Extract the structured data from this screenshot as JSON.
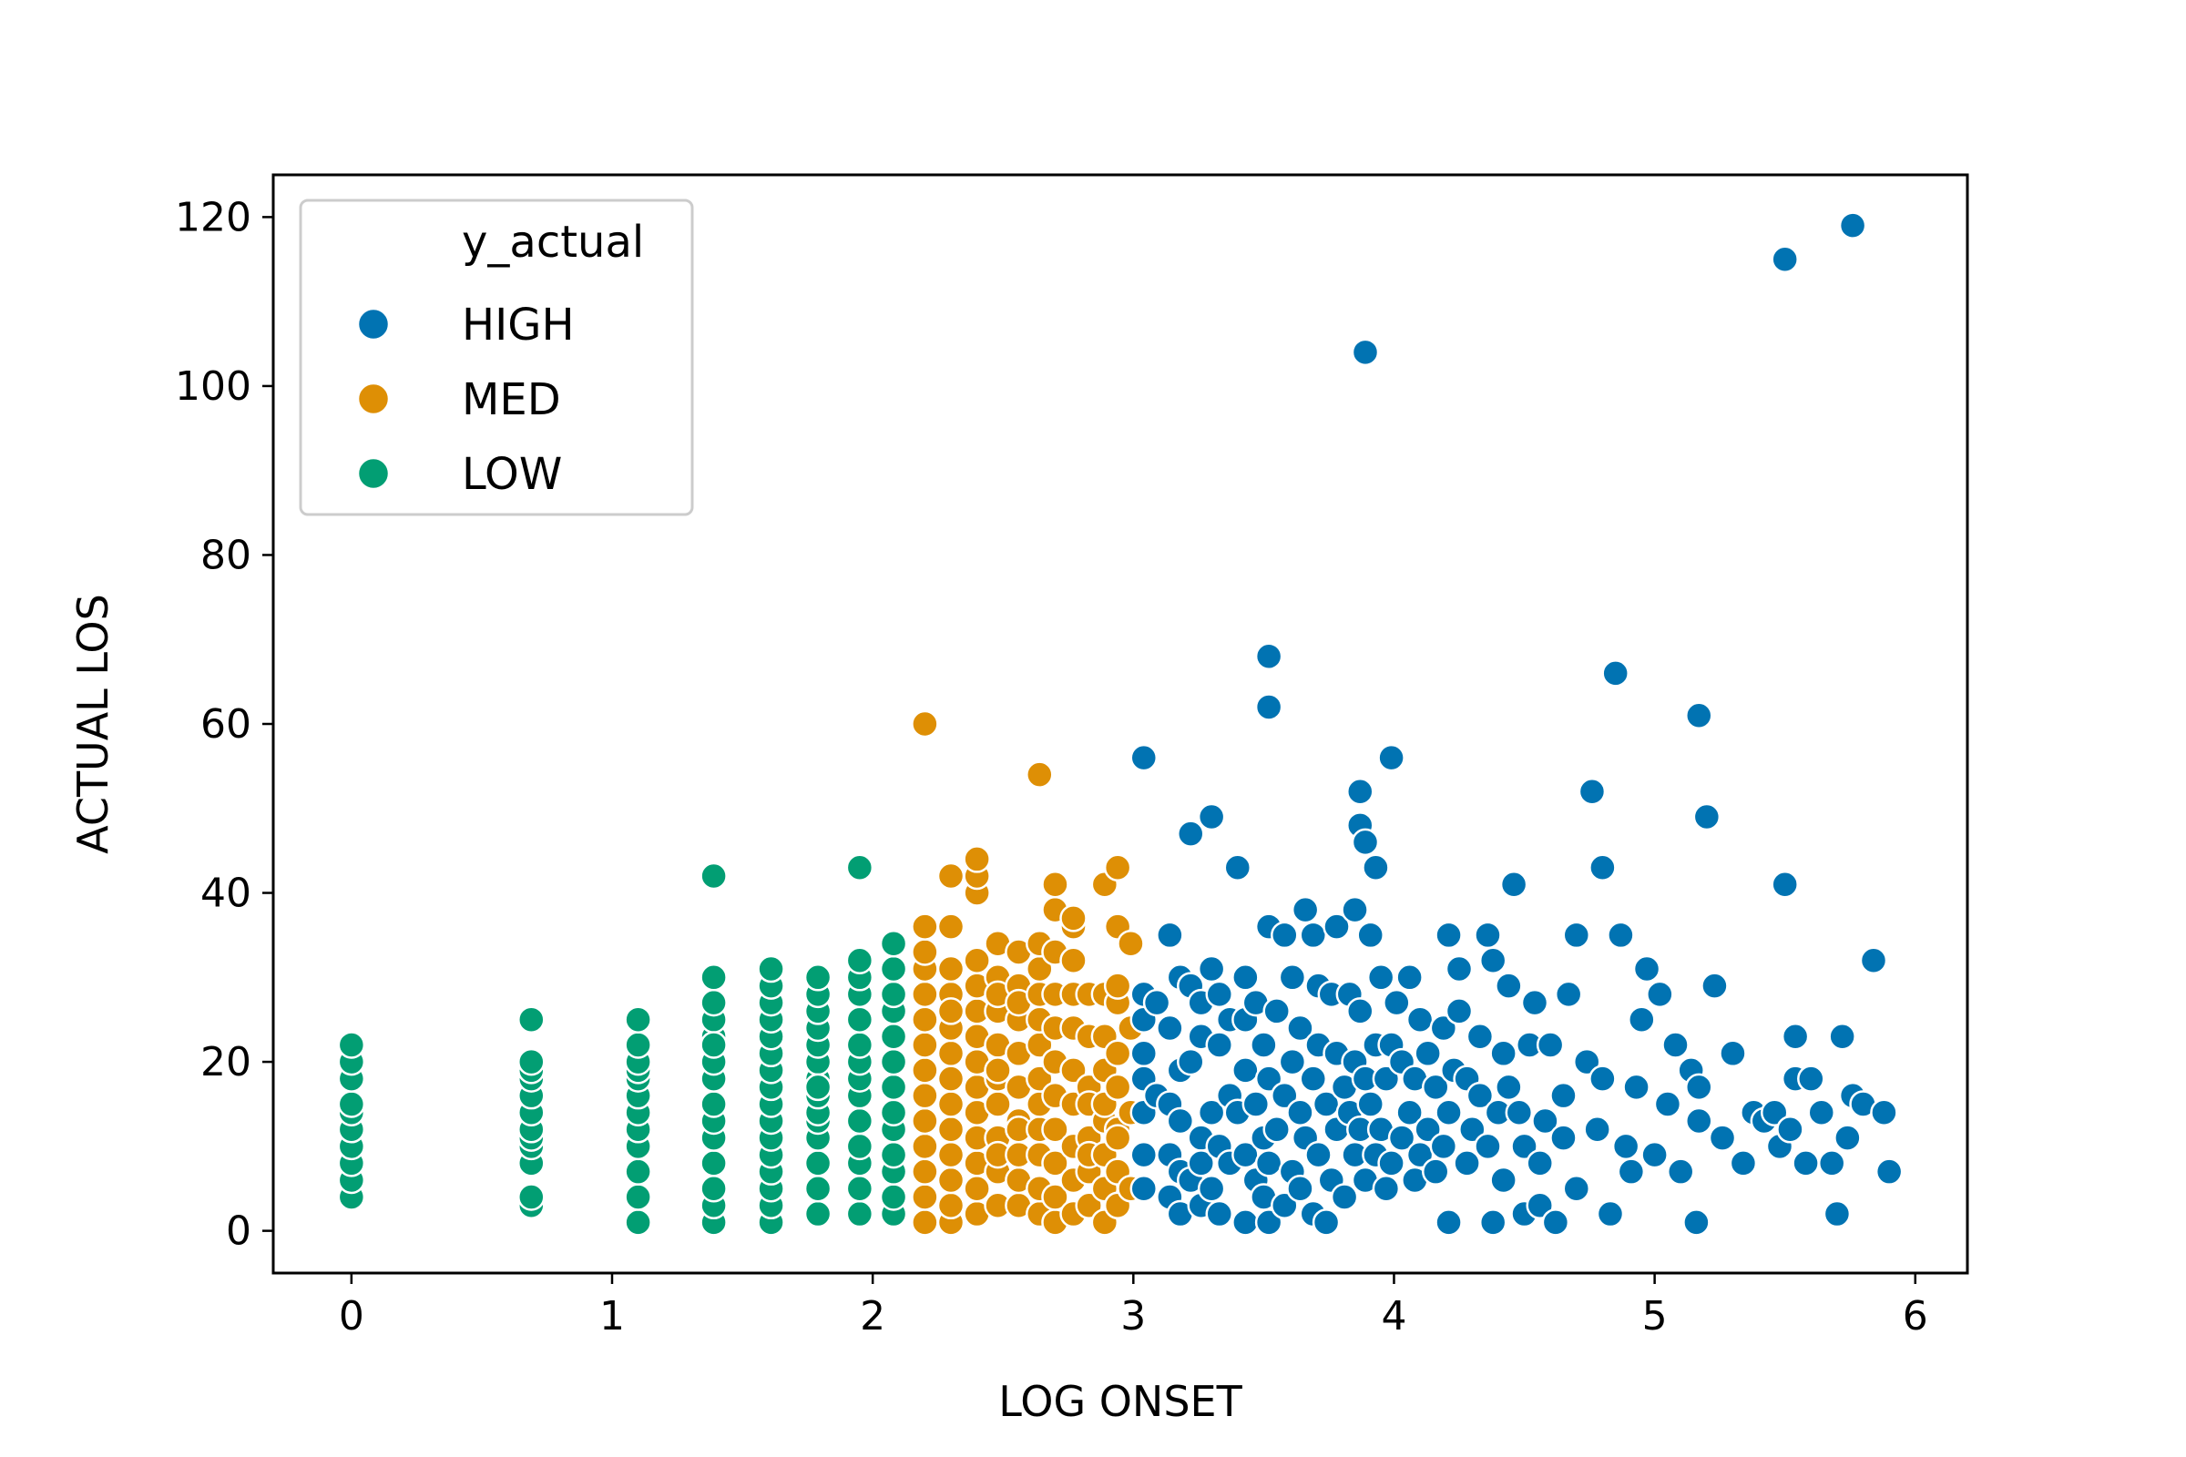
{
  "chart_data": {
    "type": "scatter",
    "title": "",
    "xlabel": "LOG ONSET",
    "ylabel": "ACTUAL LOS",
    "xlim": [
      -0.3,
      6.2
    ],
    "ylim": [
      -5,
      125
    ],
    "xticks": [
      "0",
      "1",
      "2",
      "3",
      "4",
      "5",
      "6"
    ],
    "yticks": [
      "0",
      "20",
      "40",
      "60",
      "80",
      "100",
      "120"
    ],
    "grid": false,
    "legend": {
      "title": "y_actual",
      "placement": "top-left",
      "entries": [
        "HIGH",
        "MED",
        "LOW"
      ]
    },
    "colors": {
      "HIGH": "#0173b2",
      "MED": "#de8f05",
      "LOW": "#029e73"
    },
    "series": [
      {
        "name": "LOW",
        "x": [
          0,
          0,
          0,
          0,
          0,
          0,
          0,
          0,
          0,
          0,
          0.69,
          0.69,
          0.69,
          0.69,
          0.69,
          0.69,
          0.69,
          0.69,
          0.69,
          0.69,
          0.69,
          0.69,
          1.1,
          1.1,
          1.1,
          1.1,
          1.1,
          1.1,
          1.1,
          1.1,
          1.1,
          1.1,
          1.1,
          1.1,
          1.39,
          1.39,
          1.39,
          1.39,
          1.39,
          1.39,
          1.39,
          1.39,
          1.39,
          1.39,
          1.39,
          1.39,
          1.39,
          1.39,
          1.39,
          1.61,
          1.61,
          1.61,
          1.61,
          1.61,
          1.61,
          1.61,
          1.61,
          1.61,
          1.61,
          1.61,
          1.61,
          1.61,
          1.61,
          1.61,
          1.61,
          1.79,
          1.79,
          1.79,
          1.79,
          1.79,
          1.79,
          1.79,
          1.79,
          1.79,
          1.79,
          1.79,
          1.79,
          1.79,
          1.79,
          1.79,
          1.95,
          1.95,
          1.95,
          1.95,
          1.95,
          1.95,
          1.95,
          1.95,
          1.95,
          1.95,
          1.95,
          1.95,
          1.95,
          1.95,
          2.08,
          2.08,
          2.08,
          2.08,
          2.08,
          2.08,
          2.08,
          2.08,
          2.08,
          2.08,
          2.08,
          2.08,
          2.08
        ],
        "y": [
          4,
          6,
          8,
          10,
          12,
          14,
          15,
          18,
          20,
          22,
          3,
          4,
          8,
          10,
          11,
          12,
          14,
          16,
          18,
          19,
          20,
          25,
          1,
          4,
          7,
          10,
          12,
          14,
          16,
          18,
          19,
          20,
          22,
          25,
          1,
          3,
          5,
          8,
          11,
          13,
          15,
          18,
          20,
          23,
          25,
          27,
          30,
          42,
          22,
          1,
          3,
          5,
          7,
          9,
          11,
          13,
          15,
          17,
          19,
          21,
          23,
          25,
          27,
          29,
          31,
          2,
          5,
          8,
          11,
          13,
          14,
          16,
          18,
          20,
          22,
          24,
          26,
          28,
          30,
          17,
          2,
          5,
          8,
          10,
          13,
          16,
          18,
          20,
          22,
          25,
          28,
          30,
          32,
          43,
          2,
          4,
          7,
          9,
          12,
          14,
          17,
          20,
          23,
          26,
          28,
          31,
          34
        ]
      },
      {
        "name": "MED",
        "x": [
          2.2,
          2.2,
          2.2,
          2.2,
          2.2,
          2.2,
          2.2,
          2.2,
          2.2,
          2.2,
          2.2,
          2.2,
          2.2,
          2.2,
          2.3,
          2.3,
          2.3,
          2.3,
          2.3,
          2.3,
          2.3,
          2.3,
          2.3,
          2.3,
          2.3,
          2.3,
          2.3,
          2.3,
          2.4,
          2.4,
          2.4,
          2.4,
          2.4,
          2.4,
          2.4,
          2.4,
          2.4,
          2.4,
          2.4,
          2.4,
          2.4,
          2.4,
          2.48,
          2.48,
          2.48,
          2.48,
          2.48,
          2.48,
          2.48,
          2.48,
          2.48,
          2.48,
          2.48,
          2.48,
          2.56,
          2.56,
          2.56,
          2.56,
          2.56,
          2.56,
          2.56,
          2.56,
          2.56,
          2.56,
          2.56,
          2.64,
          2.64,
          2.64,
          2.64,
          2.64,
          2.64,
          2.64,
          2.64,
          2.64,
          2.64,
          2.64,
          2.64,
          2.7,
          2.7,
          2.7,
          2.7,
          2.7,
          2.7,
          2.7,
          2.7,
          2.7,
          2.7,
          2.7,
          2.77,
          2.77,
          2.77,
          2.77,
          2.77,
          2.77,
          2.77,
          2.77,
          2.77,
          2.77,
          2.83,
          2.83,
          2.83,
          2.83,
          2.83,
          2.83,
          2.83,
          2.83,
          2.89,
          2.89,
          2.89,
          2.89,
          2.89,
          2.89,
          2.89,
          2.89,
          2.89,
          2.94,
          2.94,
          2.94,
          2.94,
          2.94,
          2.94,
          2.94,
          2.94,
          2.94,
          2.94,
          2.99,
          2.99,
          2.99,
          2.99
        ],
        "y": [
          1,
          4,
          7,
          10,
          13,
          16,
          19,
          22,
          25,
          28,
          31,
          33,
          36,
          60,
          1,
          3,
          6,
          9,
          12,
          15,
          18,
          21,
          24,
          28,
          31,
          36,
          42,
          26,
          2,
          5,
          8,
          11,
          14,
          17,
          20,
          23,
          26,
          29,
          32,
          40,
          42,
          44,
          3,
          7,
          11,
          15,
          18,
          22,
          26,
          30,
          34,
          28,
          19,
          9,
          3,
          6,
          9,
          13,
          17,
          21,
          25,
          29,
          33,
          27,
          12,
          2,
          5,
          9,
          12,
          15,
          18,
          22,
          25,
          28,
          31,
          34,
          54,
          1,
          4,
          8,
          12,
          16,
          20,
          24,
          28,
          33,
          38,
          41,
          2,
          6,
          10,
          15,
          19,
          24,
          28,
          32,
          36,
          37,
          3,
          7,
          11,
          17,
          23,
          28,
          15,
          9,
          1,
          5,
          9,
          13,
          19,
          23,
          28,
          41,
          15,
          3,
          7,
          12,
          17,
          21,
          27,
          29,
          36,
          43,
          11,
          5,
          14,
          24,
          34
        ]
      },
      {
        "name": "HIGH",
        "x": [
          3.04,
          3.04,
          3.04,
          3.04,
          3.04,
          3.04,
          3.04,
          3.04,
          3.09,
          3.09,
          3.14,
          3.14,
          3.14,
          3.14,
          3.14,
          3.18,
          3.18,
          3.18,
          3.18,
          3.18,
          3.22,
          3.22,
          3.22,
          3.22,
          3.26,
          3.26,
          3.26,
          3.26,
          3.26,
          3.3,
          3.3,
          3.3,
          3.3,
          3.33,
          3.33,
          3.33,
          3.33,
          3.37,
          3.37,
          3.37,
          3.4,
          3.4,
          3.43,
          3.43,
          3.43,
          3.43,
          3.43,
          3.47,
          3.47,
          3.47,
          3.5,
          3.5,
          3.5,
          3.52,
          3.52,
          3.52,
          3.52,
          3.52,
          3.52,
          3.55,
          3.55,
          3.58,
          3.58,
          3.58,
          3.61,
          3.61,
          3.61,
          3.64,
          3.64,
          3.64,
          3.66,
          3.66,
          3.69,
          3.69,
          3.69,
          3.71,
          3.71,
          3.71,
          3.74,
          3.74,
          3.76,
          3.76,
          3.78,
          3.78,
          3.78,
          3.81,
          3.81,
          3.83,
          3.83,
          3.85,
          3.85,
          3.85,
          3.87,
          3.87,
          3.87,
          3.87,
          3.89,
          3.89,
          3.89,
          3.89,
          3.91,
          3.91,
          3.93,
          3.93,
          3.93,
          3.95,
          3.95,
          3.97,
          3.97,
          3.99,
          3.99,
          3.99,
          4.01,
          4.03,
          4.03,
          4.06,
          4.06,
          4.08,
          4.08,
          4.1,
          4.1,
          4.13,
          4.13,
          4.16,
          4.16,
          4.19,
          4.19,
          4.21,
          4.21,
          4.21,
          4.23,
          4.25,
          4.25,
          4.28,
          4.28,
          4.3,
          4.33,
          4.33,
          4.36,
          4.36,
          4.38,
          4.38,
          4.4,
          4.42,
          4.42,
          4.44,
          4.44,
          4.46,
          4.48,
          4.5,
          4.5,
          4.52,
          4.54,
          4.56,
          4.56,
          4.58,
          4.6,
          4.62,
          4.65,
          4.65,
          4.67,
          4.7,
          4.7,
          4.74,
          4.76,
          4.78,
          4.8,
          4.8,
          4.83,
          4.85,
          4.87,
          4.89,
          4.91,
          4.93,
          4.95,
          4.97,
          5.0,
          5.02,
          5.05,
          5.08,
          5.1,
          5.14,
          5.16,
          5.17,
          5.17,
          5.17,
          5.2,
          5.23,
          5.26,
          5.3,
          5.34,
          5.38,
          5.42,
          5.46,
          5.48,
          5.5,
          5.5,
          5.52,
          5.54,
          5.54,
          5.58,
          5.6,
          5.64,
          5.68,
          5.7,
          5.72,
          5.74,
          5.76,
          5.76,
          5.8,
          5.84,
          5.88,
          5.9
        ],
        "y": [
          5,
          9,
          14,
          18,
          21,
          25,
          28,
          56,
          16,
          27,
          4,
          9,
          15,
          24,
          35,
          2,
          7,
          13,
          19,
          30,
          6,
          20,
          29,
          47,
          3,
          11,
          23,
          27,
          8,
          5,
          14,
          31,
          49,
          2,
          10,
          22,
          28,
          8,
          16,
          25,
          14,
          43,
          1,
          9,
          19,
          25,
          30,
          6,
          15,
          27,
          4,
          11,
          22,
          1,
          8,
          18,
          36,
          62,
          68,
          12,
          26,
          3,
          16,
          35,
          7,
          20,
          30,
          5,
          14,
          24,
          11,
          38,
          2,
          18,
          35,
          9,
          22,
          29,
          1,
          15,
          6,
          28,
          12,
          21,
          36,
          4,
          17,
          14,
          28,
          9,
          20,
          38,
          12,
          26,
          48,
          52,
          6,
          18,
          46,
          104,
          15,
          35,
          9,
          22,
          43,
          12,
          30,
          5,
          18,
          8,
          22,
          56,
          27,
          11,
          20,
          14,
          30,
          6,
          18,
          9,
          25,
          12,
          21,
          7,
          17,
          10,
          24,
          1,
          14,
          35,
          19,
          31,
          26,
          8,
          18,
          12,
          23,
          16,
          35,
          10,
          32,
          1,
          14,
          21,
          6,
          17,
          29,
          41,
          14,
          2,
          10,
          22,
          27,
          8,
          3,
          13,
          22,
          1,
          16,
          11,
          28,
          35,
          5,
          20,
          52,
          12,
          43,
          18,
          2,
          66,
          35,
          10,
          7,
          17,
          25,
          31,
          9,
          28,
          15,
          22,
          7,
          19,
          1,
          13,
          17,
          61,
          49,
          29,
          11,
          21,
          8,
          14,
          13,
          14,
          10,
          41,
          115,
          12,
          23,
          18,
          8,
          18,
          14,
          8,
          2,
          23,
          11,
          16,
          119,
          15,
          32,
          14,
          7
        ]
      }
    ]
  }
}
